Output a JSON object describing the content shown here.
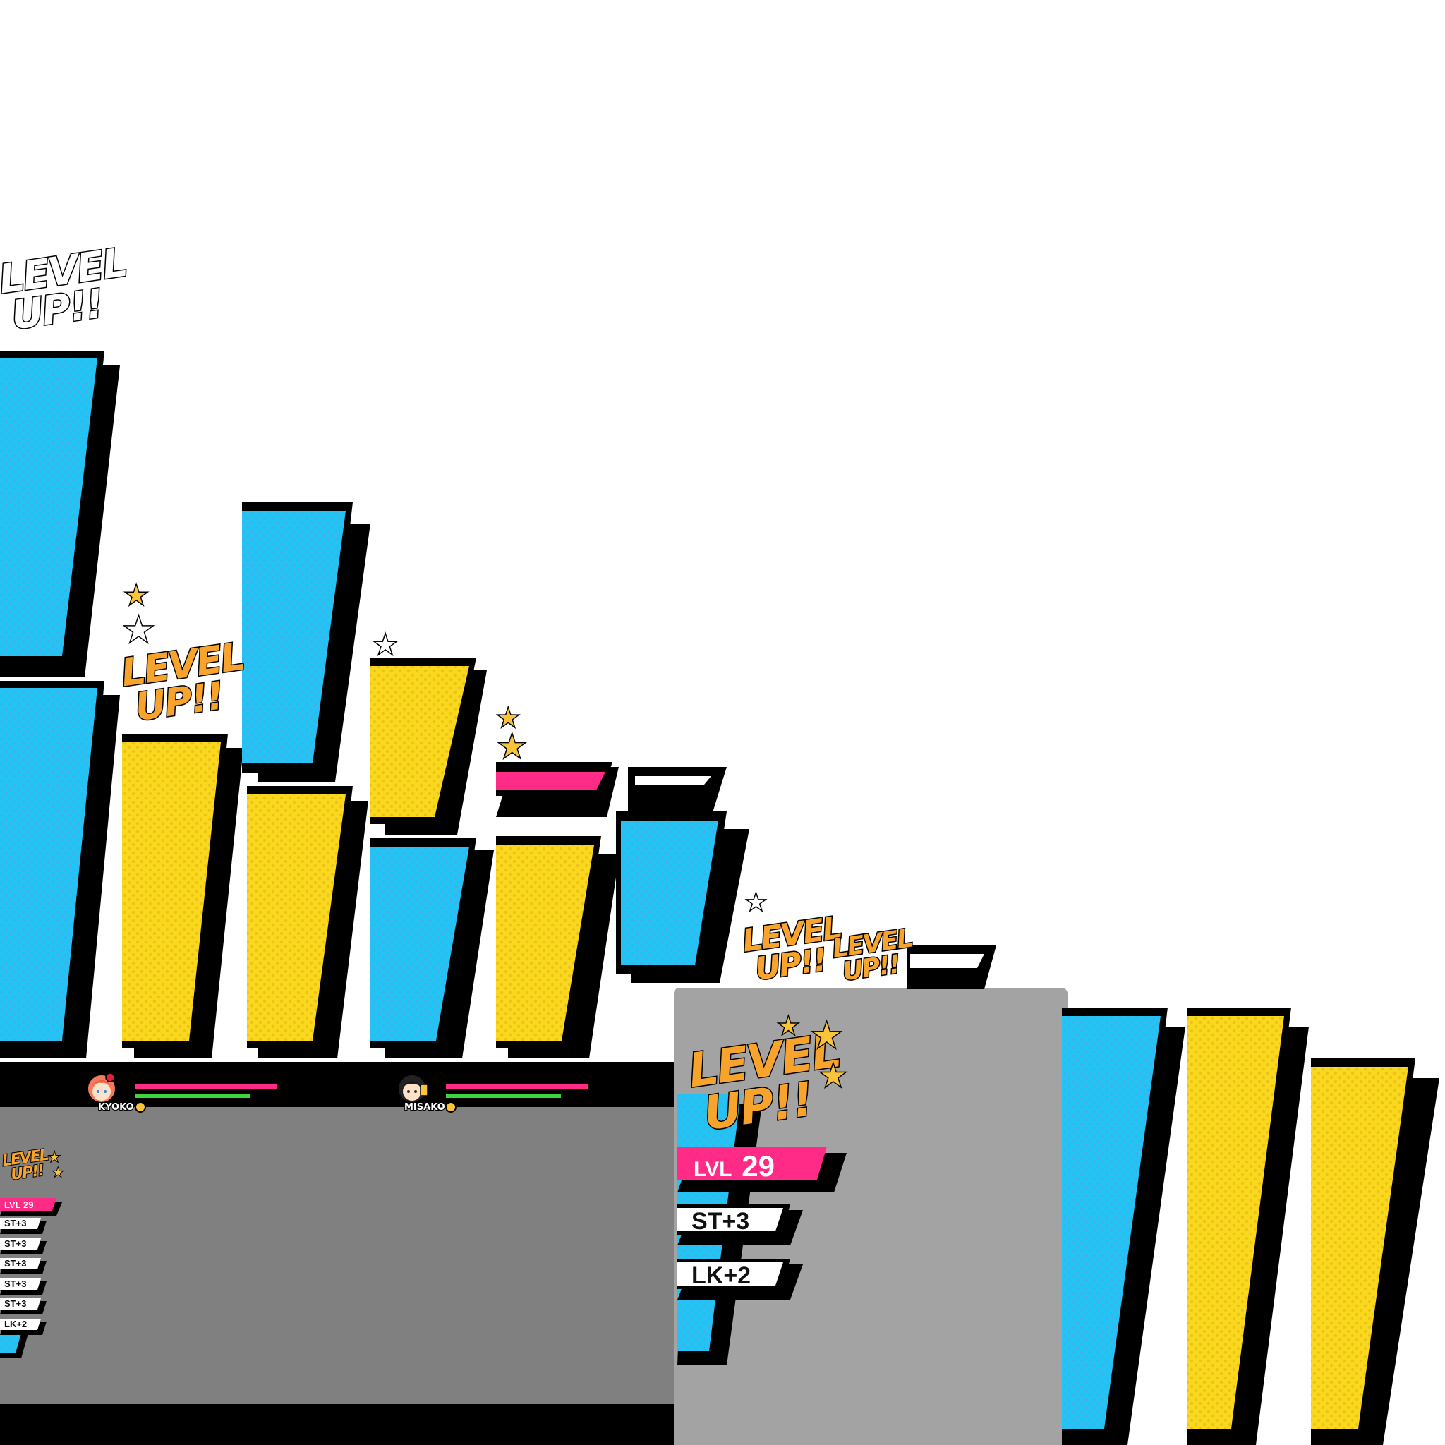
{
  "level_up_text": "LEVEL UP!!",
  "level_up_line1": "LEVEL",
  "level_up_line2": "UP!!",
  "level_badge": {
    "prefix": "LVL",
    "value": "29"
  },
  "stat_boosts": [
    "ST+3",
    "LK+2"
  ],
  "mini_stat_list": [
    "LVL 29",
    "ST+3",
    "ST+3",
    "ST+3",
    "ST+3",
    "ST+3",
    "LK+2"
  ],
  "party": [
    {
      "name": "KYOKO",
      "hp": 1.0,
      "sp": 0.9,
      "hp_color": "#ff2b86",
      "sp_color": "#3ed43e",
      "portrait": "kyoko-portrait-icon"
    },
    {
      "name": "MISAKO",
      "hp": 1.0,
      "sp": 0.9,
      "hp_color": "#ff2b86",
      "sp_color": "#3ed43e",
      "portrait": "misako-portrait-icon"
    }
  ],
  "colors": {
    "panel_blue": "#22c4f6",
    "panel_yellow": "#f9d81e",
    "accent_pink": "#ff2b86",
    "outline": "#000000",
    "backdrop_dark_gray": "#808080",
    "backdrop_light_gray": "#a3a3a3"
  }
}
